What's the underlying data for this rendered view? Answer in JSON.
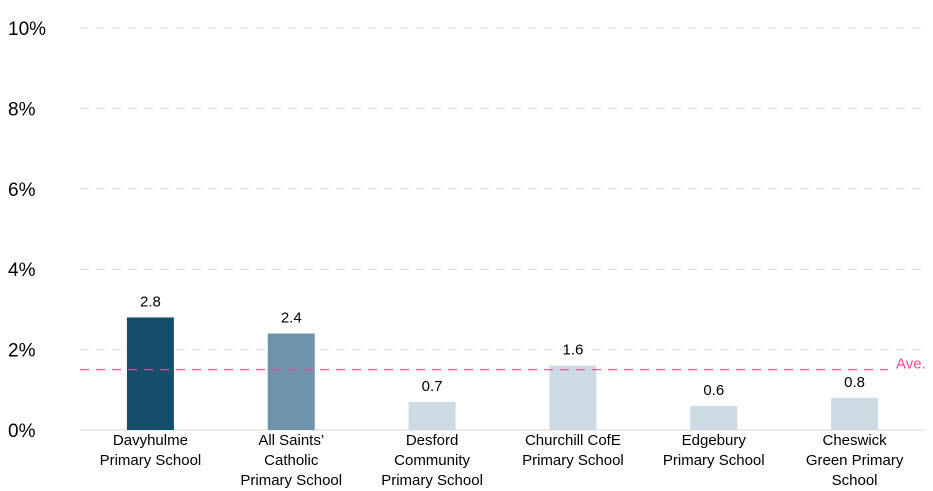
{
  "chart_data": {
    "type": "bar",
    "categories": [
      [
        "Davyhulme",
        "Primary School"
      ],
      [
        "All Saints’",
        "Catholic",
        "Primary School"
      ],
      [
        "Desford",
        "Community",
        "Primary School"
      ],
      [
        "Churchill CofE",
        "Primary School"
      ],
      [
        "Edgebury",
        "Primary School"
      ],
      [
        "Cheswick",
        "Green Primary",
        "School"
      ]
    ],
    "values": [
      2.8,
      2.4,
      0.7,
      1.6,
      0.6,
      0.8
    ],
    "data_labels": [
      "2.8",
      "2.4",
      "0.7",
      "1.6",
      "0.6",
      "0.8"
    ],
    "bar_colors": [
      "#134f6b",
      "#6f93ab",
      "#ccdae3",
      "#ccdae3",
      "#ccdae3",
      "#ccdae3"
    ],
    "y_ticks": [
      0,
      2,
      4,
      6,
      8,
      10
    ],
    "y_tick_labels": [
      "0%",
      "2%",
      "4%",
      "6%",
      "8%",
      "10%"
    ],
    "ylim": [
      0,
      10
    ],
    "average": 1.5,
    "average_label": "Ave.",
    "average_color": "#e8499a",
    "grid": true,
    "grid_color": "#d9d9d9",
    "title": "",
    "xlabel": "",
    "ylabel": ""
  }
}
